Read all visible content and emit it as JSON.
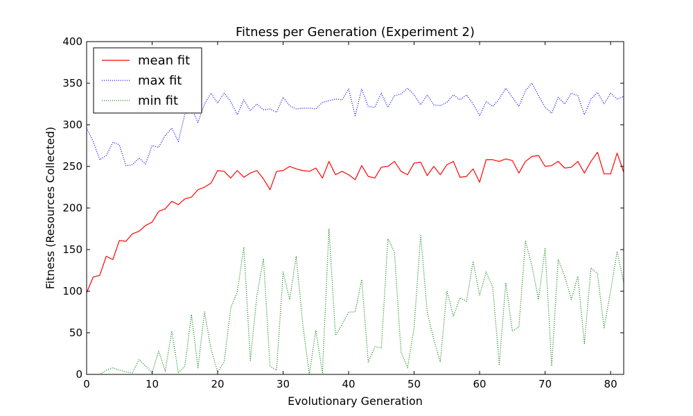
{
  "chart_data": {
    "type": "line",
    "title": "Fitness per Generation (Experiment 2)",
    "xlabel": "Evolutionary Generation",
    "ylabel": "Fitness (Resources Collected)",
    "xlim": [
      0,
      82
    ],
    "ylim": [
      0,
      400
    ],
    "xticks": [
      0,
      10,
      20,
      30,
      40,
      50,
      60,
      70,
      80
    ],
    "yticks": [
      0,
      50,
      100,
      150,
      200,
      250,
      300,
      350,
      400
    ],
    "grid": false,
    "legend_position": "top-left",
    "x": [
      0,
      1,
      2,
      3,
      4,
      5,
      6,
      7,
      8,
      9,
      10,
      11,
      12,
      13,
      14,
      15,
      16,
      17,
      18,
      19,
      20,
      21,
      22,
      23,
      24,
      25,
      26,
      27,
      28,
      29,
      30,
      31,
      32,
      33,
      34,
      35,
      36,
      37,
      38,
      39,
      40,
      41,
      42,
      43,
      44,
      45,
      46,
      47,
      48,
      49,
      50,
      51,
      52,
      53,
      54,
      55,
      56,
      57,
      58,
      59,
      60,
      61,
      62,
      63,
      64,
      65,
      66,
      67,
      68,
      69,
      70,
      71,
      72,
      73,
      74,
      75,
      76,
      77,
      78,
      79,
      80,
      81,
      82
    ],
    "series": [
      {
        "name": "mean fit",
        "color": "#ff0000",
        "style": "solid",
        "values": [
          98,
          117,
          119,
          142,
          138,
          161,
          160,
          169,
          172,
          179,
          183,
          196,
          199,
          208,
          204,
          211,
          213,
          222,
          225,
          230,
          245,
          244,
          236,
          245,
          237,
          242,
          245,
          235,
          222,
          244,
          245,
          250,
          247,
          245,
          244,
          248,
          236,
          256,
          240,
          244,
          240,
          234,
          251,
          238,
          236,
          249,
          250,
          256,
          244,
          240,
          254,
          255,
          239,
          250,
          240,
          252,
          256,
          237,
          238,
          247,
          231,
          258,
          258,
          256,
          259,
          257,
          242,
          256,
          262,
          263,
          250,
          251,
          256,
          248,
          249,
          256,
          242,
          256,
          267,
          241,
          241,
          266,
          243
        ]
      },
      {
        "name": "max fit",
        "color": "#0000ff",
        "style": "dotted",
        "values": [
          296,
          280,
          258,
          263,
          279,
          276,
          251,
          252,
          260,
          253,
          275,
          273,
          287,
          296,
          280,
          313,
          320,
          303,
          325,
          338,
          326,
          338,
          328,
          312,
          330,
          317,
          325,
          318,
          319,
          315,
          333,
          323,
          319,
          320,
          320,
          319,
          327,
          329,
          331,
          330,
          343,
          311,
          343,
          322,
          321,
          338,
          321,
          335,
          337,
          344,
          336,
          324,
          336,
          324,
          323,
          327,
          336,
          330,
          336,
          325,
          311,
          328,
          322,
          331,
          344,
          333,
          322,
          341,
          350,
          335,
          321,
          314,
          333,
          325,
          338,
          335,
          312,
          331,
          339,
          325,
          338,
          331,
          334
        ]
      },
      {
        "name": "min fit",
        "color": "#008000",
        "style": "dotted",
        "values": [
          0,
          0,
          0,
          5,
          8,
          5,
          3,
          2,
          18,
          10,
          2,
          28,
          4,
          52,
          2,
          10,
          72,
          8,
          75,
          30,
          3,
          15,
          80,
          99,
          153,
          17,
          95,
          139,
          10,
          5,
          123,
          90,
          142,
          60,
          0,
          53,
          2,
          175,
          47,
          60,
          75,
          75,
          114,
          15,
          33,
          32,
          163,
          147,
          27,
          8,
          56,
          168,
          75,
          42,
          15,
          100,
          70,
          92,
          88,
          136,
          95,
          123,
          105,
          12,
          110,
          52,
          57,
          160,
          130,
          90,
          152,
          10,
          138,
          118,
          90,
          118,
          37,
          128,
          121,
          56,
          100,
          148,
          110
        ]
      }
    ]
  }
}
